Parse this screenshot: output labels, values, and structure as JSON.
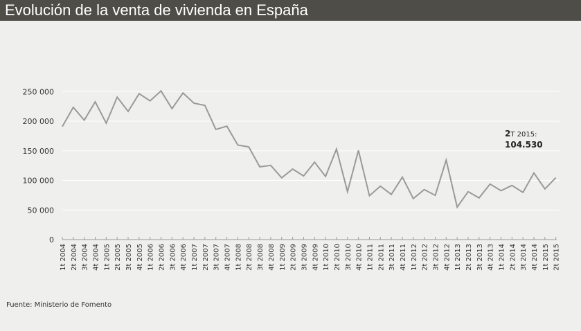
{
  "header": {
    "title": "Evolución de la venta de vivienda en España"
  },
  "source": "Fuente: Ministerio de Fomento",
  "annotation": {
    "quarter_num": "2",
    "quarter_rest": "T 2015:",
    "value": "104.530"
  },
  "colors": {
    "title_bar": "#4f4d47",
    "background": "#eff0ed",
    "line": "#999999",
    "grid": "#ffffff"
  },
  "chart_data": {
    "type": "line",
    "title": "Evolución de la venta de vivienda en España",
    "xlabel": "",
    "ylabel": "",
    "ylim": [
      0,
      250000
    ],
    "grid": true,
    "y_ticks": [
      0,
      50000,
      100000,
      150000,
      200000,
      250000
    ],
    "y_tick_labels": [
      "0",
      "50 000",
      "100 000",
      "150 000",
      "200 000",
      "250 000"
    ],
    "categories": [
      "1t 2004",
      "2t 2004",
      "3t 2004",
      "4t 2004",
      "1t 2005",
      "2t 2005",
      "3t 2005",
      "4t 2005",
      "1t 2006",
      "2t 2006",
      "3t 2006",
      "4t 2006",
      "1t 2007",
      "2t 2007",
      "3t 2007",
      "4t 2007",
      "1t 2008",
      "2t 2008",
      "3t 2008",
      "4t 2008",
      "1t 2009",
      "2t 2009",
      "3t 2009",
      "4t 2009",
      "1t 2010",
      "2t 2010",
      "3t 2010",
      "4t 2010",
      "1t 2011",
      "2t 2011",
      "3t 2011",
      "4t 2011",
      "1t 2012",
      "2t 2012",
      "3t 2012",
      "4t 2012",
      "1t 2013",
      "2t 2013",
      "3t 2013",
      "4t 2013",
      "1t 2014",
      "2t 2014",
      "3t 2014",
      "4t 2014",
      "1t 2015",
      "2t 2015"
    ],
    "values": [
      191000,
      223500,
      201800,
      232800,
      196600,
      240700,
      216500,
      246500,
      234400,
      251200,
      221200,
      247700,
      230500,
      226600,
      186100,
      191600,
      159700,
      156500,
      123000,
      125400,
      104300,
      119200,
      107500,
      130800,
      106700,
      153000,
      81000,
      150700,
      74000,
      90300,
      76300,
      105500,
      69300,
      84500,
      74800,
      134300,
      54900,
      81000,
      70400,
      93800,
      82600,
      91500,
      79800,
      112500,
      85600,
      104530
    ]
  }
}
